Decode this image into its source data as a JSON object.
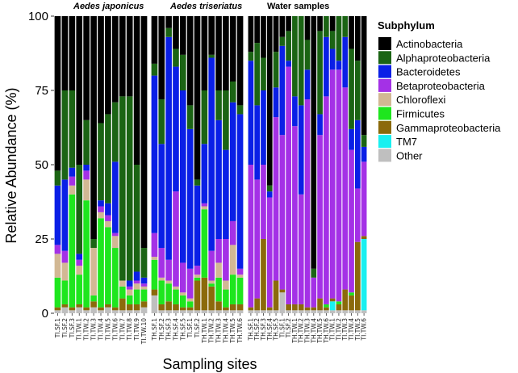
{
  "chart_data": {
    "type": "bar",
    "stacked": true,
    "ylabel": "Relative Abundance (%)",
    "xlabel": "Sampling sites",
    "ylim": [
      0,
      100
    ],
    "yticks": [
      0,
      25,
      50,
      75,
      100
    ],
    "legend": {
      "title": "Subphylum",
      "placement": "right",
      "entries": [
        {
          "name": "Actinobacteria",
          "color": "#000000"
        },
        {
          "name": "Alphaproteobacteria",
          "color": "#1b6414"
        },
        {
          "name": "Bacteroidetes",
          "color": "#0a1fe6"
        },
        {
          "name": "Betaproteobacteria",
          "color": "#a431e6"
        },
        {
          "name": "Chloroflexi",
          "color": "#d2b894"
        },
        {
          "name": "Firmicutes",
          "color": "#1ee61e"
        },
        {
          "name": "Gammaproteobacteria",
          "color": "#8b6a0b"
        },
        {
          "name": "TM7",
          "color": "#19f0f0"
        },
        {
          "name": "Other",
          "color": "#bfbfbf"
        }
      ]
    },
    "stack_order": [
      "Other",
      "TM7",
      "Gammaproteobacteria",
      "Firmicutes",
      "Chloroflexi",
      "Betaproteobacteria",
      "Bacteroidetes",
      "Alphaproteobacteria",
      "Actinobacteria"
    ],
    "panels": [
      {
        "title": "Aedes japonicus",
        "italic": true,
        "bars": [
          {
            "label": "TI.SF.1",
            "values": {
              "Other": 1,
              "Gammaproteobacteria": 1,
              "Firmicutes": 10,
              "Chloroflexi": 8,
              "Betaproteobacteria": 3,
              "Bacteroidetes": 20,
              "Alphaproteobacteria": 5,
              "Actinobacteria": 52
            }
          },
          {
            "label": "TI.SF.2",
            "values": {
              "Other": 2,
              "Gammaproteobacteria": 1,
              "Firmicutes": 8,
              "Chloroflexi": 6,
              "Betaproteobacteria": 4,
              "Bacteroidetes": 24,
              "Alphaproteobacteria": 30,
              "Actinobacteria": 25
            }
          },
          {
            "label": "TI.SF.3",
            "values": {
              "Other": 1,
              "Gammaproteobacteria": 1,
              "Firmicutes": 38,
              "Chloroflexi": 3,
              "Betaproteobacteria": 3,
              "Bacteroidetes": 3,
              "Alphaproteobacteria": 26,
              "Actinobacteria": 25
            }
          },
          {
            "label": "TI.TW.1",
            "values": {
              "Other": 2,
              "Gammaproteobacteria": 1,
              "Firmicutes": 10,
              "Chloroflexi": 3,
              "Betaproteobacteria": 2,
              "Bacteroidetes": 2,
              "Alphaproteobacteria": 30,
              "Actinobacteria": 50
            }
          },
          {
            "label": "TI.TW.2",
            "values": {
              "Other": 1,
              "Gammaproteobacteria": 1,
              "Firmicutes": 36,
              "Chloroflexi": 7,
              "Betaproteobacteria": 3,
              "Bacteroidetes": 2,
              "Alphaproteobacteria": 15,
              "Actinobacteria": 35
            }
          },
          {
            "label": "TI.TW.3",
            "values": {
              "Other": 2,
              "Gammaproteobacteria": 2,
              "Firmicutes": 2,
              "Chloroflexi": 16,
              "Betaproteobacteria": 0,
              "Bacteroidetes": 0,
              "Alphaproteobacteria": 3,
              "Actinobacteria": 75
            }
          },
          {
            "label": "TI.TW.4",
            "values": {
              "Other": 1,
              "Gammaproteobacteria": 1,
              "Firmicutes": 30,
              "Chloroflexi": 2,
              "Betaproteobacteria": 2,
              "Bacteroidetes": 2,
              "Alphaproteobacteria": 26,
              "Actinobacteria": 36
            }
          },
          {
            "label": "TI.TW.5",
            "values": {
              "Other": 2,
              "Gammaproteobacteria": 1,
              "Firmicutes": 26,
              "Chloroflexi": 2,
              "Betaproteobacteria": 2,
              "Bacteroidetes": 4,
              "Alphaproteobacteria": 30,
              "Actinobacteria": 33
            }
          },
          {
            "label": "TI.TW.6",
            "values": {
              "Other": 1,
              "Gammaproteobacteria": 1,
              "Firmicutes": 20,
              "Chloroflexi": 4,
              "Betaproteobacteria": 1,
              "Bacteroidetes": 24,
              "Alphaproteobacteria": 20,
              "Actinobacteria": 29
            }
          },
          {
            "label": "TI.TW.7",
            "values": {
              "Other": 1,
              "Gammaproteobacteria": 4,
              "Firmicutes": 4,
              "Chloroflexi": 2,
              "Betaproteobacteria": 0,
              "Bacteroidetes": 0,
              "Alphaproteobacteria": 62,
              "Actinobacteria": 27
            }
          },
          {
            "label": "TI.TW.8",
            "values": {
              "Other": 1,
              "Gammaproteobacteria": 2,
              "Firmicutes": 3,
              "Chloroflexi": 2,
              "Betaproteobacteria": 1,
              "Bacteroidetes": 2,
              "Alphaproteobacteria": 62,
              "Actinobacteria": 27
            }
          },
          {
            "label": "TI.TW.9",
            "values": {
              "Other": 1,
              "Gammaproteobacteria": 2,
              "Firmicutes": 5,
              "Chloroflexi": 2,
              "Betaproteobacteria": 1,
              "Bacteroidetes": 3,
              "Alphaproteobacteria": 36,
              "Actinobacteria": 50
            }
          },
          {
            "label": "TI.TW.10",
            "values": {
              "Other": 2,
              "Gammaproteobacteria": 2,
              "Firmicutes": 4,
              "Chloroflexi": 1,
              "Betaproteobacteria": 1,
              "Bacteroidetes": 2,
              "Alphaproteobacteria": 10,
              "Actinobacteria": 78
            }
          }
        ]
      },
      {
        "title": "Aedes triseriatus",
        "italic": true,
        "bars": [
          {
            "label": "TH.SF.1",
            "values": {
              "Other": 6,
              "Gammaproteobacteria": 2,
              "Firmicutes": 10,
              "Chloroflexi": 1,
              "Betaproteobacteria": 8,
              "Bacteroidetes": 53,
              "Alphaproteobacteria": 4,
              "Actinobacteria": 16
            }
          },
          {
            "label": "TH.SF.2",
            "values": {
              "Other": 1,
              "Gammaproteobacteria": 2,
              "Firmicutes": 8,
              "Chloroflexi": 1,
              "Betaproteobacteria": 10,
              "Bacteroidetes": 35,
              "Alphaproteobacteria": 15,
              "Actinobacteria": 28
            }
          },
          {
            "label": "TH.SF.3",
            "values": {
              "Other": 1,
              "Gammaproteobacteria": 3,
              "Firmicutes": 6,
              "Chloroflexi": 1,
              "Betaproteobacteria": 7,
              "Bacteroidetes": 75,
              "Alphaproteobacteria": 3,
              "Actinobacteria": 4
            }
          },
          {
            "label": "TH.SF.4",
            "values": {
              "Other": 1,
              "Gammaproteobacteria": 2,
              "Firmicutes": 5,
              "Chloroflexi": 1,
              "Betaproteobacteria": 32,
              "Bacteroidetes": 42,
              "Alphaproteobacteria": 6,
              "Actinobacteria": 11
            }
          },
          {
            "label": "TH.SF.5",
            "values": {
              "Other": 1,
              "Gammaproteobacteria": 1,
              "Firmicutes": 4,
              "Chloroflexi": 1,
              "Betaproteobacteria": 10,
              "Bacteroidetes": 58,
              "Alphaproteobacteria": 12,
              "Actinobacteria": 13
            }
          },
          {
            "label": "TI.SF.1",
            "values": {
              "Other": 1,
              "Gammaproteobacteria": 1,
              "Firmicutes": 2,
              "Chloroflexi": 1,
              "Betaproteobacteria": 10,
              "Bacteroidetes": 47,
              "Alphaproteobacteria": 8,
              "Actinobacteria": 30
            }
          },
          {
            "label": "TI.SF.2",
            "values": {
              "Other": 1,
              "Gammaproteobacteria": 10,
              "Firmicutes": 1,
              "Chloroflexi": 1,
              "Betaproteobacteria": 3,
              "Bacteroidetes": 27,
              "Alphaproteobacteria": 2,
              "Actinobacteria": 55
            }
          },
          {
            "label": "TH.TW.1",
            "values": {
              "Other": 1,
              "Gammaproteobacteria": 11,
              "Firmicutes": 23,
              "Chloroflexi": 1,
              "Betaproteobacteria": 1,
              "Bacteroidetes": 20,
              "Alphaproteobacteria": 18,
              "Actinobacteria": 25
            }
          },
          {
            "label": "TH.TW.2",
            "values": {
              "Other": 1,
              "Gammaproteobacteria": 8,
              "Firmicutes": 1,
              "Chloroflexi": 1,
              "Betaproteobacteria": 10,
              "Bacteroidetes": 65,
              "Alphaproteobacteria": 1,
              "Actinobacteria": 13
            }
          },
          {
            "label": "TH.TW.3",
            "values": {
              "Other": 1,
              "Gammaproteobacteria": 3,
              "Firmicutes": 8,
              "Chloroflexi": 5,
              "Betaproteobacteria": 8,
              "Bacteroidetes": 40,
              "Alphaproteobacteria": 10,
              "Actinobacteria": 25
            }
          },
          {
            "label": "TH.TW.4",
            "values": {
              "Other": 1,
              "Gammaproteobacteria": 1,
              "Firmicutes": 6,
              "Chloroflexi": 3,
              "Betaproteobacteria": 14,
              "Bacteroidetes": 30,
              "Alphaproteobacteria": 20,
              "Actinobacteria": 25
            }
          },
          {
            "label": "TH.TW.5",
            "values": {
              "Other": 1,
              "Gammaproteobacteria": 2,
              "Firmicutes": 10,
              "Chloroflexi": 10,
              "Betaproteobacteria": 8,
              "Bacteroidetes": 40,
              "Alphaproteobacteria": 7,
              "Actinobacteria": 22
            }
          },
          {
            "label": "TH.TW.6",
            "values": {
              "Other": 1,
              "Gammaproteobacteria": 2,
              "Firmicutes": 9,
              "Chloroflexi": 1,
              "Betaproteobacteria": 2,
              "Bacteroidetes": 52,
              "Alphaproteobacteria": 3,
              "Actinobacteria": 30
            }
          }
        ]
      },
      {
        "title": "Water samples",
        "italic": false,
        "bars": [
          {
            "label": "TH.SF.1",
            "values": {
              "Other": 1,
              "Gammaproteobacteria": 1,
              "Firmicutes": 0,
              "Chloroflexi": 0,
              "Betaproteobacteria": 48,
              "Bacteroidetes": 35,
              "Alphaproteobacteria": 3,
              "Actinobacteria": 12
            }
          },
          {
            "label": "TH.SF.2",
            "values": {
              "Other": 1,
              "Gammaproteobacteria": 4,
              "Firmicutes": 0,
              "Chloroflexi": 0,
              "Betaproteobacteria": 40,
              "Bacteroidetes": 25,
              "Alphaproteobacteria": 21,
              "Actinobacteria": 9
            }
          },
          {
            "label": "TH.SF.3",
            "values": {
              "Other": 1,
              "Gammaproteobacteria": 24,
              "Firmicutes": 0,
              "Chloroflexi": 0,
              "Betaproteobacteria": 25,
              "Bacteroidetes": 25,
              "Alphaproteobacteria": 11,
              "Actinobacteria": 14
            }
          },
          {
            "label": "TH.SF.4",
            "values": {
              "Other": 1,
              "Gammaproteobacteria": 1,
              "Firmicutes": 0,
              "Chloroflexi": 0,
              "Betaproteobacteria": 37,
              "Bacteroidetes": 2,
              "Alphaproteobacteria": 2,
              "Actinobacteria": 57
            }
          },
          {
            "label": "TH.SF.5",
            "values": {
              "Other": 1,
              "Gammaproteobacteria": 10,
              "Firmicutes": 0,
              "Chloroflexi": 0,
              "Betaproteobacteria": 55,
              "Bacteroidetes": 10,
              "Alphaproteobacteria": 12,
              "Actinobacteria": 12
            }
          },
          {
            "label": "TI.SF.1",
            "values": {
              "Other": 7,
              "Gammaproteobacteria": 1,
              "Firmicutes": 0,
              "Chloroflexi": 0,
              "Betaproteobacteria": 52,
              "Bacteroidetes": 30,
              "Alphaproteobacteria": 3,
              "Actinobacteria": 7
            }
          },
          {
            "label": "TI.SF.2",
            "values": {
              "Other": 1,
              "Gammaproteobacteria": 2,
              "Firmicutes": 0,
              "Chloroflexi": 0,
              "Betaproteobacteria": 80,
              "Bacteroidetes": 2,
              "Alphaproteobacteria": 10,
              "Actinobacteria": 5
            }
          },
          {
            "label": "TH.TW.1",
            "values": {
              "Other": 1,
              "Gammaproteobacteria": 2,
              "Firmicutes": 0,
              "Chloroflexi": 0,
              "Betaproteobacteria": 60,
              "Bacteroidetes": 10,
              "Alphaproteobacteria": 27,
              "Actinobacteria": 0
            }
          },
          {
            "label": "TH.TW.2",
            "values": {
              "Other": 1,
              "Gammaproteobacteria": 2,
              "Firmicutes": 0,
              "Chloroflexi": 0,
              "Betaproteobacteria": 37,
              "Bacteroidetes": 30,
              "Alphaproteobacteria": 30,
              "Actinobacteria": 0
            }
          },
          {
            "label": "TH.TW.3",
            "values": {
              "Other": 1,
              "Gammaproteobacteria": 1,
              "Firmicutes": 0,
              "Chloroflexi": 0,
              "Betaproteobacteria": 70,
              "Bacteroidetes": 10,
              "Alphaproteobacteria": 10,
              "Actinobacteria": 8
            }
          },
          {
            "label": "TH.TW.4",
            "values": {
              "Other": 1,
              "Gammaproteobacteria": 1,
              "Firmicutes": 0,
              "Chloroflexi": 0,
              "Betaproteobacteria": 10,
              "Bacteroidetes": 0,
              "Alphaproteobacteria": 3,
              "Actinobacteria": 85
            }
          },
          {
            "label": "TH.TW.5",
            "values": {
              "Other": 1,
              "Gammaproteobacteria": 4,
              "Firmicutes": 0,
              "Chloroflexi": 0,
              "Betaproteobacteria": 55,
              "Bacteroidetes": 7,
              "Alphaproteobacteria": 28,
              "Actinobacteria": 5
            }
          },
          {
            "label": "TH.TW.6",
            "values": {
              "Other": 1,
              "Gammaproteobacteria": 1,
              "Firmicutes": 1,
              "Chloroflexi": 0,
              "Betaproteobacteria": 70,
              "Bacteroidetes": 20,
              "Alphaproteobacteria": 7,
              "Actinobacteria": 0
            }
          },
          {
            "label": "TI.TW.1",
            "values": {
              "Other": 1,
              "Gammaproteobacteria": 1,
              "Firmicutes": 0,
              "TM7": 3,
              "Chloroflexi": 0,
              "Betaproteobacteria": 77,
              "Bacteroidetes": 7,
              "Alphaproteobacteria": 6,
              "Actinobacteria": 5
            }
          },
          {
            "label": "TI.TW.2",
            "values": {
              "Other": 1,
              "Gammaproteobacteria": 2,
              "Firmicutes": 1,
              "Chloroflexi": 0,
              "Betaproteobacteria": 78,
              "Bacteroidetes": 3,
              "Alphaproteobacteria": 15,
              "Actinobacteria": 0
            }
          },
          {
            "label": "TI.TW.3",
            "values": {
              "Other": 1,
              "Gammaproteobacteria": 7,
              "Firmicutes": 0,
              "Chloroflexi": 0,
              "Betaproteobacteria": 68,
              "Bacteroidetes": 17,
              "Alphaproteobacteria": 7,
              "Actinobacteria": 0
            }
          },
          {
            "label": "TI.TW.4",
            "values": {
              "Other": 1,
              "Gammaproteobacteria": 5,
              "Firmicutes": 1,
              "Chloroflexi": 0,
              "Betaproteobacteria": 48,
              "Bacteroidetes": 7,
              "Alphaproteobacteria": 27,
              "Actinobacteria": 11
            }
          },
          {
            "label": "TI.TW.5",
            "values": {
              "Other": 1,
              "Gammaproteobacteria": 23,
              "Firmicutes": 0,
              "Chloroflexi": 0,
              "Betaproteobacteria": 18,
              "Bacteroidetes": 23,
              "Alphaproteobacteria": 20,
              "Actinobacteria": 15
            }
          },
          {
            "label": "TI.TW.6",
            "values": {
              "Other": 1,
              "Gammaproteobacteria": 1,
              "TM7": 24,
              "Firmicutes": 0,
              "Chloroflexi": 0,
              "Betaproteobacteria": 25,
              "Bacteroidetes": 5,
              "Alphaproteobacteria": 4,
              "Actinobacteria": 40
            }
          }
        ]
      }
    ]
  }
}
